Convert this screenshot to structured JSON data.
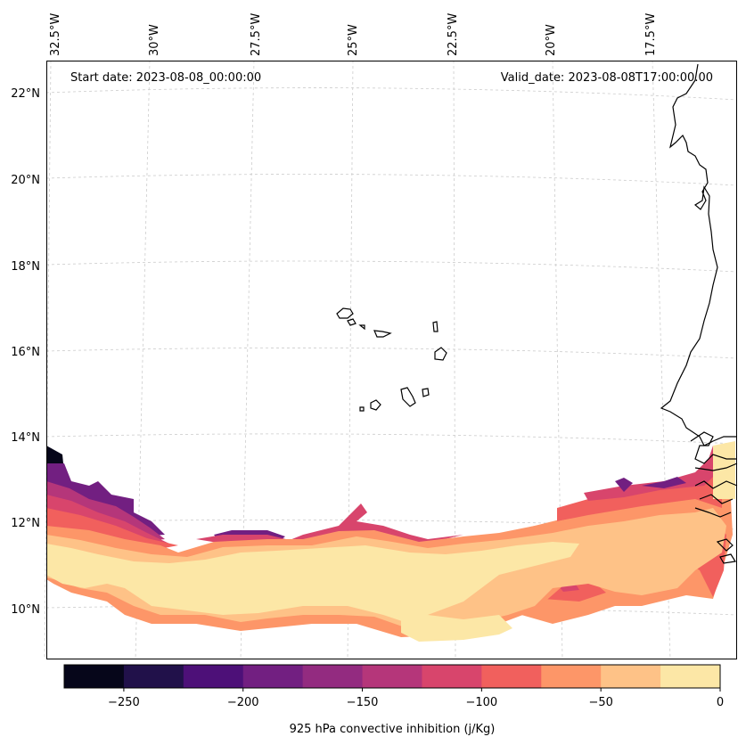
{
  "map": {
    "start_date": "Start date: 2023-08-08_00:00:00",
    "valid_date": "Valid_date: 2023-08-08T17:00:00.00",
    "lon_labels": [
      "32.5°W",
      "30°W",
      "27.5°W",
      "25°W",
      "22.5°W",
      "20°W",
      "17.5°W"
    ],
    "lat_labels": [
      "22°N",
      "20°N",
      "18°N",
      "16°N",
      "14°N",
      "12°N",
      "10°N"
    ],
    "field_name": "925 hPa convective inhibition (j/Kg)"
  },
  "colorbar": {
    "label": "925 hPa convective inhibition (j/Kg)",
    "tick_labels": [
      "−250",
      "−200",
      "−150",
      "−100",
      "−50",
      "0"
    ],
    "tick_values": [
      -250,
      -200,
      -150,
      -100,
      -50,
      0
    ],
    "range": [
      -275,
      0
    ],
    "levels": [
      -275,
      -250,
      -225,
      -200,
      -175,
      -150,
      -125,
      -100,
      -75,
      -50,
      -25,
      0
    ],
    "colors": [
      "#06061a",
      "#21114a",
      "#4d1078",
      "#721f81",
      "#932b80",
      "#b5367a",
      "#d8456c",
      "#f1605d",
      "#fd9668",
      "#fec287",
      "#fce7a6"
    ]
  },
  "colors": {
    "coast": "#000000",
    "grid": "#cccccc",
    "band_darkest": "#06061a",
    "band_dark_purple": "#4d1078",
    "band_purple": "#721f81",
    "band_magenta": "#b5367a",
    "band_pink": "#d8456c",
    "band_salmon": "#f1605d",
    "band_orange": "#fd9668",
    "band_peach": "#fec287",
    "band_cream": "#fce7a6"
  }
}
